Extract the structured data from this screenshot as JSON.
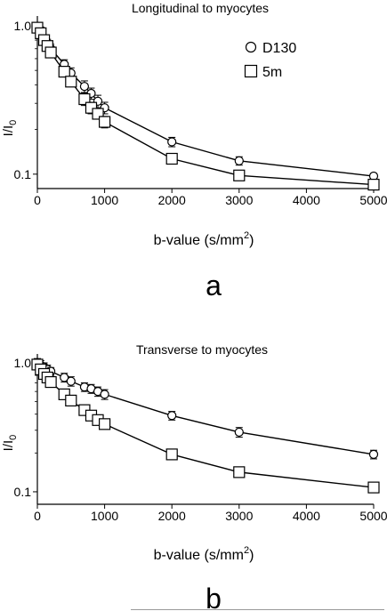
{
  "chart_data": [
    {
      "type": "line",
      "title": "Longitudinal to myocytes",
      "panel_label": "a",
      "xlabel_main": "b-value (s/mm",
      "xlabel_sup": "2",
      "xlabel_tail": ")",
      "ylabel_main": "I/I",
      "ylabel_sub": "0",
      "y_scale": "log",
      "xlim": [
        0,
        5000
      ],
      "ylim": [
        0.08,
        1.1
      ],
      "x_ticks": [
        0,
        1000,
        2000,
        3000,
        4000,
        5000
      ],
      "x_tick_labels": [
        "0",
        "1000",
        "2000",
        "3000",
        "4000",
        "5000"
      ],
      "y_ticks": [
        0.1,
        1.0
      ],
      "y_tick_labels": [
        "0.1",
        "1.0"
      ],
      "legend_position": "top-right",
      "series": [
        {
          "name": "D130",
          "marker": "circle",
          "x": [
            0,
            50,
            100,
            150,
            200,
            400,
            500,
            700,
            800,
            900,
            1000,
            2000,
            3000,
            5000
          ],
          "y": [
            0.99,
            0.92,
            0.82,
            0.76,
            0.7,
            0.55,
            0.48,
            0.39,
            0.35,
            0.31,
            0.28,
            0.165,
            0.123,
            0.097
          ],
          "err": [
            0.06,
            0.06,
            0.05,
            0.05,
            0.05,
            0.04,
            0.04,
            0.035,
            0.03,
            0.03,
            0.025,
            0.012,
            0.008,
            0.004
          ]
        },
        {
          "name": "5m",
          "marker": "square",
          "x": [
            0,
            50,
            100,
            150,
            200,
            400,
            500,
            700,
            800,
            900,
            1000,
            2000,
            3000,
            5000
          ],
          "y": [
            0.97,
            0.89,
            0.8,
            0.73,
            0.66,
            0.49,
            0.42,
            0.32,
            0.28,
            0.255,
            0.225,
            0.127,
            0.098,
            0.085
          ],
          "err": [
            0.05,
            0.05,
            0.05,
            0.05,
            0.04,
            0.035,
            0.03,
            0.03,
            0.025,
            0.02,
            0.02,
            0.007,
            0.005,
            0.003
          ]
        }
      ]
    },
    {
      "type": "line",
      "title": "Transverse to myocytes",
      "panel_label": "b",
      "xlabel_main": "b-value (s/mm",
      "xlabel_sup": "2",
      "xlabel_tail": ")",
      "ylabel_main": "I/I",
      "ylabel_sub": "0",
      "y_scale": "log",
      "xlim": [
        0,
        5000
      ],
      "ylim": [
        0.08,
        1.1
      ],
      "x_ticks": [
        0,
        1000,
        2000,
        3000,
        4000,
        5000
      ],
      "x_tick_labels": [
        "0",
        "1000",
        "2000",
        "3000",
        "4000",
        "5000"
      ],
      "y_ticks": [
        0.1,
        1.0
      ],
      "y_tick_labels": [
        "0.1",
        "1.0"
      ],
      "series": [
        {
          "marker": "circle",
          "x": [
            0,
            50,
            100,
            150,
            200,
            400,
            500,
            700,
            800,
            900,
            1000,
            2000,
            3000,
            5000
          ],
          "y": [
            1.0,
            0.96,
            0.93,
            0.89,
            0.86,
            0.77,
            0.72,
            0.65,
            0.63,
            0.6,
            0.57,
            0.39,
            0.29,
            0.195
          ],
          "err": [
            0.08,
            0.08,
            0.07,
            0.07,
            0.06,
            0.06,
            0.06,
            0.05,
            0.05,
            0.05,
            0.05,
            0.03,
            0.025,
            0.015
          ]
        },
        {
          "marker": "square",
          "x": [
            0,
            50,
            100,
            150,
            200,
            400,
            500,
            700,
            800,
            900,
            1000,
            2000,
            3000,
            5000
          ],
          "y": [
            0.97,
            0.89,
            0.82,
            0.77,
            0.71,
            0.57,
            0.51,
            0.43,
            0.39,
            0.36,
            0.335,
            0.195,
            0.142,
            0.108
          ],
          "err": [
            0.04,
            0.04,
            0.04,
            0.03,
            0.03,
            0.03,
            0.02,
            0.02,
            0.02,
            0.02,
            0.015,
            0.008,
            0.005,
            0.004
          ]
        }
      ]
    }
  ]
}
